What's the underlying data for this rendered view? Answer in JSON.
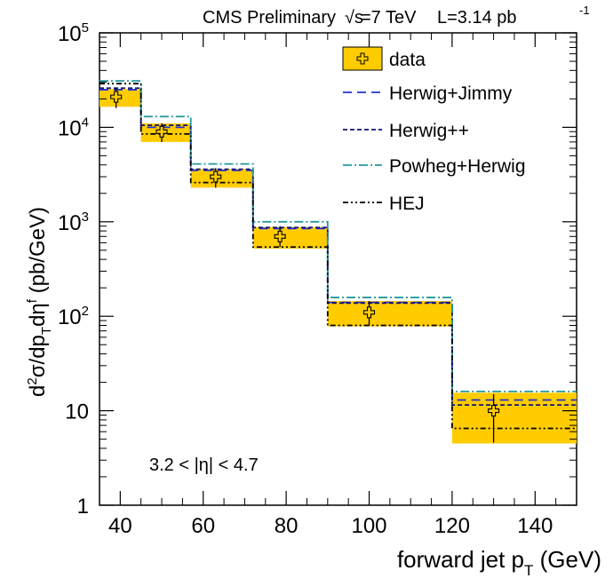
{
  "chart_data": {
    "type": "step",
    "header": {
      "experiment": "CMS Preliminary",
      "sqrt_s": "√s",
      "energy": "=7 TeV",
      "lumi": "L=3.14 pb",
      "lumi_exp": "-1"
    },
    "xlabel": "forward jet p",
    "xlabel_sub": "T",
    "xlabel_unit": " (GeV)",
    "ylabel": "d²σ/dp_T dη^f (pb/GeV)",
    "xlim": [
      35,
      150
    ],
    "ylim": [
      1,
      100000
    ],
    "yscale": "log",
    "x_ticks": [
      "40",
      "60",
      "80",
      "100",
      "120",
      "140"
    ],
    "y_ticks": [
      "1",
      "10",
      "10²",
      "10³",
      "10⁴",
      "10⁵"
    ],
    "region_label": "3.2 < |η| < 4.7",
    "bin_edges": [
      35,
      45,
      57,
      72,
      90,
      120,
      150
    ],
    "legend": [
      {
        "label": "data",
        "key": "data"
      },
      {
        "label": "Herwig+Jimmy",
        "key": "hj"
      },
      {
        "label": "Herwig++",
        "key": "hpp"
      },
      {
        "label": "Powheg+Herwig",
        "key": "ph"
      },
      {
        "label": "HEJ",
        "key": "hej"
      }
    ],
    "data": {
      "x": [
        39,
        50,
        63,
        78.5,
        100,
        130
      ],
      "y": [
        21000,
        9000,
        3000,
        700,
        110,
        10
      ],
      "err_low": [
        16000,
        7000,
        2300,
        540,
        80,
        4.6
      ],
      "err_high": [
        26000,
        11000,
        3700,
        900,
        145,
        15
      ],
      "band_low": [
        16500,
        7000,
        2300,
        520,
        78,
        4.5
      ],
      "band_high": [
        25500,
        11000,
        3600,
        880,
        145,
        15.5
      ],
      "color": "#ffcc00"
    },
    "series": [
      {
        "key": "hj",
        "values": [
          25000,
          10000,
          3500,
          850,
          140,
          13
        ],
        "color": "#2233cc"
      },
      {
        "key": "hpp",
        "values": [
          26000,
          10500,
          3600,
          870,
          138,
          11.5
        ],
        "color": "#111177"
      },
      {
        "key": "ph",
        "values": [
          31000,
          13000,
          4100,
          1000,
          158,
          16
        ],
        "color": "#229999"
      },
      {
        "key": "hej",
        "values": [
          29000,
          8500,
          2600,
          540,
          80,
          6.5
        ],
        "color": "#000000"
      }
    ]
  }
}
